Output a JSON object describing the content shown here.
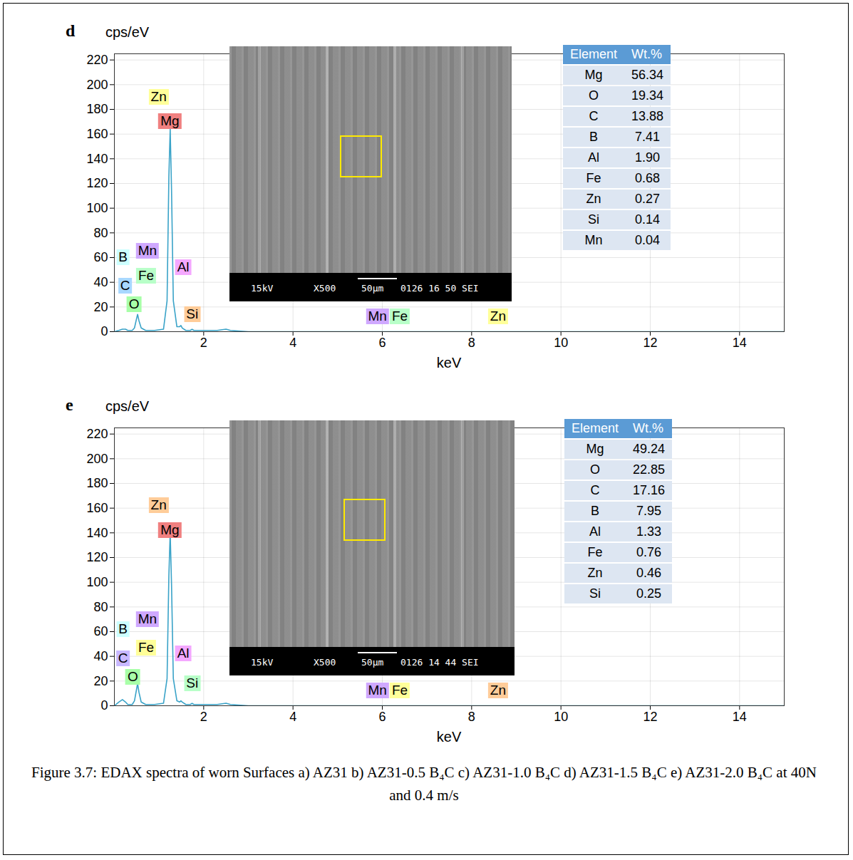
{
  "chart_data": [
    {
      "type": "line",
      "title": "d",
      "xlabel": "keV",
      "ylabel": "cps/eV",
      "x": [
        0,
        0.1,
        0.18,
        0.25,
        0.3,
        0.4,
        0.45,
        0.5,
        0.52,
        0.55,
        0.6,
        0.7,
        0.9,
        1.1,
        1.18,
        1.22,
        1.25,
        1.28,
        1.32,
        1.4,
        1.46,
        1.49,
        1.52,
        1.6,
        1.7,
        1.74,
        1.78,
        2.0,
        2.3,
        2.5,
        2.6,
        3,
        4,
        5,
        6,
        7,
        8,
        9,
        10,
        11,
        12,
        13,
        14,
        15
      ],
      "values": [
        0,
        1,
        2,
        2,
        1,
        1,
        3,
        11,
        14,
        9,
        3,
        1,
        1,
        2,
        25,
        125,
        164,
        115,
        25,
        4,
        4,
        5,
        3,
        1,
        1,
        2,
        1,
        1,
        1,
        2,
        1,
        0,
        0,
        0,
        0,
        0,
        0,
        0,
        0,
        0,
        0,
        0,
        0,
        0
      ],
      "color": "#3aa3c8",
      "xlim": [
        0,
        15
      ],
      "ylim": [
        0,
        225
      ],
      "xticks": [
        2,
        4,
        6,
        8,
        10,
        12,
        14
      ],
      "yticks": [
        0,
        20,
        40,
        60,
        80,
        100,
        120,
        140,
        160,
        180,
        200,
        220
      ],
      "grid": true,
      "annotations": [
        {
          "text": "Zn",
          "x": 1.0,
          "y": 190,
          "color": "#ffff99"
        },
        {
          "text": "Mg",
          "x": 1.25,
          "y": 170,
          "color": "#f08080"
        },
        {
          "text": "B",
          "x": 0.2,
          "y": 60,
          "color": "#ccffff"
        },
        {
          "text": "Mn",
          "x": 0.75,
          "y": 65,
          "color": "#cfa8ff"
        },
        {
          "text": "Fe",
          "x": 0.72,
          "y": 45,
          "color": "#b8ffc8"
        },
        {
          "text": "C",
          "x": 0.25,
          "y": 37,
          "color": "#a8d8ff"
        },
        {
          "text": "O",
          "x": 0.45,
          "y": 22,
          "color": "#a8ffa8"
        },
        {
          "text": "Al",
          "x": 1.55,
          "y": 52,
          "color": "#f4a8ff"
        },
        {
          "text": "Si",
          "x": 1.75,
          "y": 14,
          "color": "#ffcc99"
        },
        {
          "text": "Mn",
          "x": 5.9,
          "y": 12,
          "color": "#cfa8ff"
        },
        {
          "text": "Fe",
          "x": 6.4,
          "y": 12,
          "color": "#b8ffc8"
        },
        {
          "text": "Zn",
          "x": 8.6,
          "y": 12,
          "color": "#ffff99"
        }
      ],
      "image_text": [
        "15kV",
        "X500",
        "50μm",
        "0126 16 50 SEI"
      ],
      "table": {
        "columns": [
          "Element",
          "Wt.%"
        ],
        "rows": [
          [
            "Mg",
            "56.34"
          ],
          [
            "O",
            "19.34"
          ],
          [
            "C",
            "13.88"
          ],
          [
            "B",
            "7.41"
          ],
          [
            "Al",
            "1.90"
          ],
          [
            "Fe",
            "0.68"
          ],
          [
            "Zn",
            "0.27"
          ],
          [
            "Si",
            "0.14"
          ],
          [
            "Mn",
            "0.04"
          ]
        ]
      }
    },
    {
      "type": "line",
      "title": "e",
      "xlabel": "keV",
      "ylabel": "cps/eV",
      "x": [
        0,
        0.1,
        0.18,
        0.25,
        0.3,
        0.4,
        0.45,
        0.5,
        0.52,
        0.55,
        0.6,
        0.7,
        0.9,
        1.1,
        1.18,
        1.22,
        1.25,
        1.28,
        1.32,
        1.4,
        1.46,
        1.49,
        1.52,
        1.6,
        1.7,
        1.74,
        1.78,
        2.0,
        2.3,
        2.5,
        2.6,
        3,
        4,
        5,
        6,
        7,
        8,
        9,
        10,
        11,
        12,
        13,
        14,
        15
      ],
      "values": [
        0,
        3,
        5,
        3,
        1,
        1,
        4,
        14,
        18,
        11,
        3,
        1,
        1,
        2,
        22,
        105,
        140,
        98,
        22,
        4,
        3,
        4,
        3,
        1,
        1,
        2,
        1,
        1,
        1,
        2,
        1,
        0,
        0,
        0,
        0,
        0,
        0,
        0,
        0,
        0,
        0,
        0,
        0,
        0
      ],
      "color": "#3aa3c8",
      "xlim": [
        0,
        15
      ],
      "ylim": [
        0,
        225
      ],
      "xticks": [
        2,
        4,
        6,
        8,
        10,
        12,
        14
      ],
      "yticks": [
        0,
        20,
        40,
        60,
        80,
        100,
        120,
        140,
        160,
        180,
        200,
        220
      ],
      "grid": true,
      "annotations": [
        {
          "text": "Zn",
          "x": 1.0,
          "y": 162,
          "color": "#ffcc99"
        },
        {
          "text": "Mg",
          "x": 1.25,
          "y": 142,
          "color": "#f08080"
        },
        {
          "text": "B",
          "x": 0.2,
          "y": 62,
          "color": "#ccffff"
        },
        {
          "text": "Mn",
          "x": 0.75,
          "y": 70,
          "color": "#cfa8ff"
        },
        {
          "text": "Fe",
          "x": 0.72,
          "y": 47,
          "color": "#ffff99"
        },
        {
          "text": "C",
          "x": 0.2,
          "y": 38,
          "color": "#c8b8ff"
        },
        {
          "text": "O",
          "x": 0.42,
          "y": 23,
          "color": "#a8ffa8"
        },
        {
          "text": "Al",
          "x": 1.55,
          "y": 42,
          "color": "#f4a8ff"
        },
        {
          "text": "Si",
          "x": 1.75,
          "y": 18,
          "color": "#b8ffc8"
        },
        {
          "text": "Mn",
          "x": 5.9,
          "y": 12,
          "color": "#cfa8ff"
        },
        {
          "text": "Fe",
          "x": 6.4,
          "y": 12,
          "color": "#ffff99"
        },
        {
          "text": "Zn",
          "x": 8.6,
          "y": 12,
          "color": "#ffcc99"
        }
      ],
      "image_text": [
        "15kV",
        "X500",
        "50μm",
        "0126 14 44 SEI"
      ],
      "table": {
        "columns": [
          "Element",
          "Wt.%"
        ],
        "rows": [
          [
            "Mg",
            "49.24"
          ],
          [
            "O",
            "22.85"
          ],
          [
            "C",
            "17.16"
          ],
          [
            "B",
            "7.95"
          ],
          [
            "Al",
            "1.33"
          ],
          [
            "Fe",
            "0.76"
          ],
          [
            "Zn",
            "0.46"
          ],
          [
            "Si",
            "0.25"
          ]
        ]
      }
    }
  ],
  "caption": "Figure 3.7: EDAX spectra of worn Surfaces a) AZ31 b) AZ31-0.5 B₄C c) AZ31-1.0 B₄C d) AZ31-1.5 B₄C e) AZ31-2.0 B₄C at 40N and 0.4 m/s"
}
